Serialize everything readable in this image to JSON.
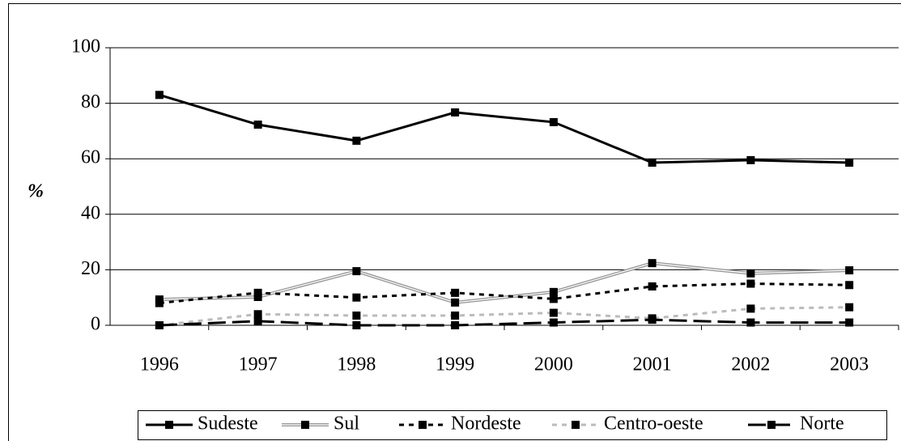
{
  "chart_data": {
    "type": "line",
    "y_label": "%",
    "categories": [
      "1996",
      "1997",
      "1998",
      "1999",
      "2000",
      "2001",
      "2002",
      "2003"
    ],
    "series": [
      {
        "name": "Sudeste",
        "color": "#000000",
        "line_style": "solid",
        "values": [
          83,
          72.3,
          66.5,
          76.7,
          73.2,
          58.6,
          59.5,
          58.6
        ]
      },
      {
        "name": "Sul",
        "color": "#999999",
        "line_style": "double",
        "values": [
          9.3,
          10.2,
          19.5,
          8.2,
          12,
          22.4,
          18.7,
          19.8
        ]
      },
      {
        "name": "Nordeste",
        "color": "#000000",
        "line_style": "dotted",
        "values": [
          8,
          11.7,
          10,
          11.7,
          9.5,
          14,
          15,
          14.5
        ]
      },
      {
        "name": "Centro-oeste",
        "color": "#bbbbbb",
        "line_style": "dotted",
        "values": [
          0,
          4,
          3.5,
          3.5,
          4.5,
          2.5,
          6,
          6.5
        ]
      },
      {
        "name": "Norte",
        "color": "#000000",
        "line_style": "dashed",
        "values": [
          0,
          1.5,
          0,
          0,
          1,
          2,
          1,
          1
        ]
      }
    ],
    "ylim": [
      0,
      100
    ],
    "yticks": [
      0,
      20,
      40,
      60,
      80,
      100
    ],
    "grid": true,
    "legend": "bottom"
  }
}
